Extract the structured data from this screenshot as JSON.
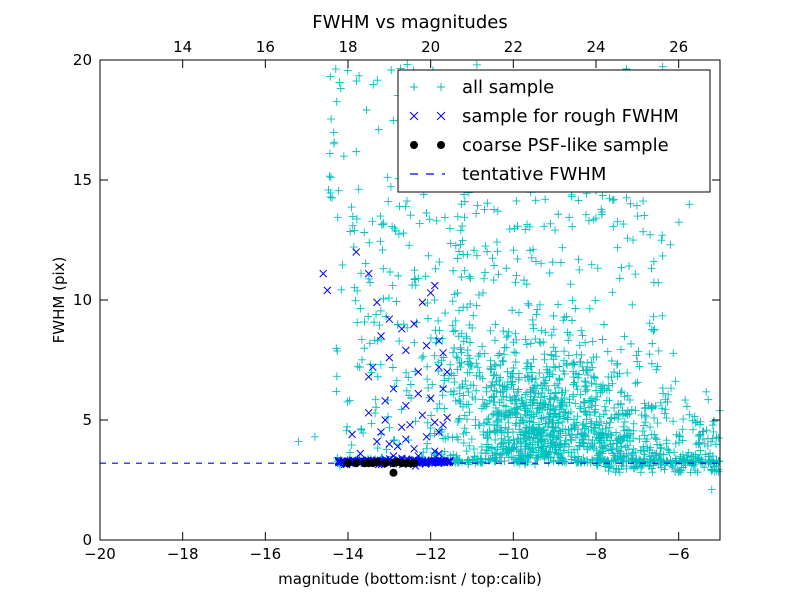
{
  "chart_data": {
    "type": "scatter",
    "title": "FWHM vs magnitudes",
    "xlabel": "magnitude (bottom:isnt / top:calib)",
    "ylabel": "FWHM (pix)",
    "xlim": [
      -20,
      -5
    ],
    "ylim": [
      0,
      20
    ],
    "x_ticks": [
      -20,
      -18,
      -16,
      -14,
      -12,
      -10,
      -8,
      -6
    ],
    "x_tick_labels": [
      "−20",
      "−18",
      "−16",
      "−14",
      "−12",
      "−10",
      "−8",
      "−6"
    ],
    "y_ticks": [
      0,
      5,
      10,
      15,
      20
    ],
    "y_tick_labels": [
      "0",
      "5",
      "10",
      "15",
      "20"
    ],
    "top_axis_offset": 32,
    "top_x_ticks": [
      14,
      16,
      18,
      20,
      22,
      24,
      26
    ],
    "top_x_tick_labels": [
      "14",
      "16",
      "18",
      "20",
      "22",
      "24",
      "26"
    ],
    "legend_position": "top-right",
    "grid": false,
    "series": [
      {
        "name": "all sample",
        "marker": "+",
        "color": "#00bfbf"
      },
      {
        "name": "sample for rough FWHM",
        "marker": "x",
        "color": "#0000ff"
      },
      {
        "name": "coarse PSF-like sample",
        "marker": "o",
        "color": "#000000"
      },
      {
        "name": "tentative FWHM",
        "marker": "dashed-line",
        "color": "#0000ff"
      }
    ],
    "tentative_fwhm": 3.2,
    "rough_sample_points": [
      [
        -14.6,
        11.1
      ],
      [
        -14.5,
        10.4
      ],
      [
        -13.8,
        12.0
      ],
      [
        -13.5,
        11.1
      ],
      [
        -13.3,
        9.9
      ],
      [
        -13.0,
        9.2
      ],
      [
        -12.7,
        8.8
      ],
      [
        -12.4,
        9.0
      ],
      [
        -12.2,
        9.9
      ],
      [
        -12.0,
        10.3
      ],
      [
        -11.9,
        10.6
      ],
      [
        -11.8,
        8.3
      ],
      [
        -11.7,
        7.8
      ],
      [
        -11.8,
        7.2
      ],
      [
        -12.3,
        7.0
      ],
      [
        -13.5,
        6.8
      ],
      [
        -13.4,
        7.2
      ],
      [
        -13.0,
        7.6
      ],
      [
        -12.9,
        6.3
      ],
      [
        -13.1,
        5.8
      ],
      [
        -12.6,
        5.6
      ],
      [
        -12.3,
        6.1
      ],
      [
        -12.0,
        5.9
      ],
      [
        -11.7,
        6.3
      ],
      [
        -11.6,
        5.1
      ],
      [
        -11.7,
        4.8
      ],
      [
        -11.8,
        4.5
      ],
      [
        -12.1,
        4.3
      ],
      [
        -12.6,
        4.2
      ],
      [
        -13.0,
        4.0
      ],
      [
        -13.3,
        4.1
      ],
      [
        -12.8,
        3.9
      ],
      [
        -12.4,
        3.8
      ],
      [
        -11.9,
        3.7
      ],
      [
        -13.7,
        3.6
      ],
      [
        -12.9,
        3.5
      ],
      [
        -12.3,
        3.5
      ],
      [
        -11.8,
        3.6
      ],
      [
        -13.2,
        4.5
      ],
      [
        -12.5,
        4.8
      ],
      [
        -13.5,
        5.3
      ],
      [
        -12.2,
        5.2
      ],
      [
        -13.9,
        4.4
      ],
      [
        -12.7,
        4.7
      ],
      [
        -11.9,
        4.9
      ],
      [
        -13.1,
        5.0
      ],
      [
        -12.6,
        7.9
      ],
      [
        -13.2,
        8.5
      ],
      [
        -12.1,
        8.1
      ],
      [
        -11.6,
        7.0
      ]
    ],
    "psf_sample_points": [
      [
        -14.0,
        3.2
      ],
      [
        -13.8,
        3.2
      ],
      [
        -13.6,
        3.2
      ],
      [
        -13.5,
        3.2
      ],
      [
        -13.3,
        3.25
      ],
      [
        -13.1,
        3.2
      ],
      [
        -12.9,
        3.2
      ],
      [
        -12.8,
        3.25
      ],
      [
        -12.7,
        3.2
      ],
      [
        -12.6,
        3.2
      ],
      [
        -12.5,
        3.2
      ],
      [
        -12.9,
        2.8
      ],
      [
        -13.4,
        3.2
      ],
      [
        -12.4,
        3.2
      ]
    ],
    "all_sample_points": "dense cloud: roughly magnitudes -15 to -5, FWHM 2 to 20; band near 3.3 from -14.3 to -5; dense cluster around magnitude -10 to -6 with FWHM 3 to 9"
  }
}
